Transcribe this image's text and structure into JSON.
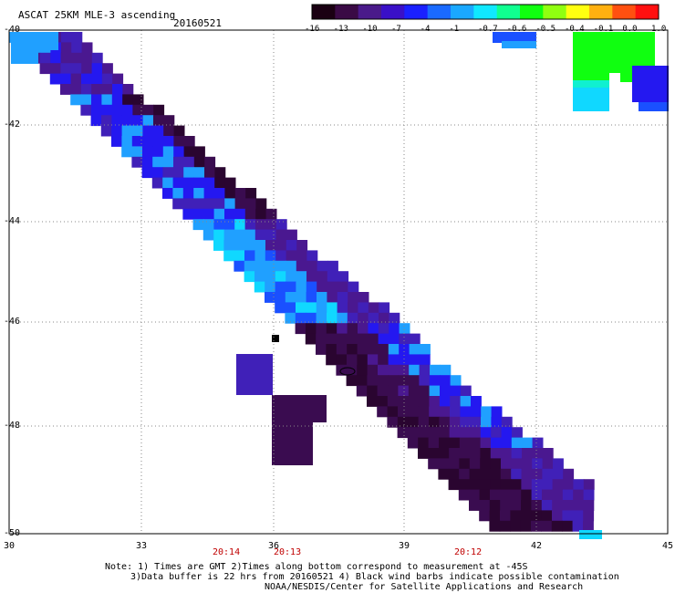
{
  "header": {
    "title": "ASCAT 25KM MLE-3 ascending",
    "date": "20160521"
  },
  "colorbar": {
    "labels": [
      "-16",
      "-13",
      "-10",
      "-7",
      "-4",
      "-1",
      "-0.7",
      "-0.6",
      "-0.5",
      "-0.4",
      "-0.1",
      "0.0",
      "1.0"
    ],
    "colors": [
      "#1a0012",
      "#3a0a45",
      "#4a1a8a",
      "#3a10c8",
      "#1a20ff",
      "#1a6aff",
      "#1aa8ff",
      "#10e8ff",
      "#10ff90",
      "#10ff10",
      "#90ff10",
      "#ffff10",
      "#ffb010",
      "#ff5010",
      "#ff1010"
    ]
  },
  "axes": {
    "y_ticks": [
      "-40",
      "-42",
      "-44",
      "-46",
      "-48",
      "-50"
    ],
    "x_ticks": [
      "30",
      "33",
      "36",
      "39",
      "42",
      "45"
    ]
  },
  "times": [
    "20:14",
    "20:13",
    "20:12"
  ],
  "notes": {
    "line1": "Note: 1) Times are GMT 2)Times along bottom correspond to measurement at -45S",
    "line2": "3)Data buffer is 22 hrs from 20160521 4) Black wind barbs indicate possible contamination",
    "line3": "NOAA/NESDIS/Center for Satellite Applications and Research"
  },
  "palette": {
    "deep": "#2a0530",
    "dark_purple": "#3a0c50",
    "purple": "#4a1890",
    "violet": "#4020b8",
    "blue": "#2418f0",
    "mid_blue": "#1a50ff",
    "light_blue": "#20a0ff",
    "cyan": "#10d8ff",
    "aqua": "#10f0d0",
    "green": "#10ff10"
  }
}
